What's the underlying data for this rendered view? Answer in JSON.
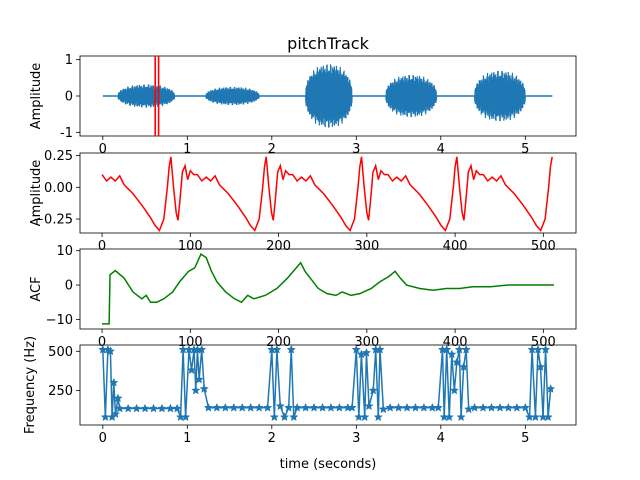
{
  "figure": {
    "title": "pitchTrack",
    "xlabel_bottom": "time (seconds)"
  },
  "chart_data": [
    {
      "type": "line",
      "id": "waveform",
      "ylabel": "Amplitude",
      "xlim": [
        -0.27,
        5.6
      ],
      "ylim": [
        -1.1,
        1.1
      ],
      "xticks": [
        0,
        1,
        2,
        3,
        4,
        5
      ],
      "yticks": [
        -1,
        0,
        1
      ],
      "color": "#1f77b4",
      "segments": [
        {
          "start": 0.18,
          "end": 0.85,
          "amp": 0.33
        },
        {
          "start": 1.22,
          "end": 1.85,
          "amp": 0.26
        },
        {
          "start": 2.4,
          "end": 2.95,
          "amp": 0.9
        },
        {
          "start": 3.35,
          "end": 3.95,
          "amp": 0.6
        },
        {
          "start": 4.4,
          "end": 5.0,
          "amp": 0.72
        }
      ],
      "markers": {
        "x": [
          0.62,
          0.66
        ],
        "color": "#ff0000"
      }
    },
    {
      "type": "line",
      "id": "frame",
      "ylabel": "Amplitude",
      "xlim": [
        -25,
        537
      ],
      "ylim": [
        -0.36,
        0.27
      ],
      "xticks": [
        0,
        100,
        200,
        300,
        400,
        500
      ],
      "yticks": [
        -0.25,
        0.0,
        0.25
      ],
      "ytick_labels": [
        "−0.25",
        "0.00",
        "0.25"
      ],
      "color": "#ff0000",
      "period": 108,
      "n_samples": 512,
      "cycle": [
        [
          0,
          0.1
        ],
        [
          5,
          0.05
        ],
        [
          10,
          0.08
        ],
        [
          15,
          0.05
        ],
        [
          20,
          0.09
        ],
        [
          25,
          0.02
        ],
        [
          35,
          -0.05
        ],
        [
          45,
          -0.14
        ],
        [
          55,
          -0.24
        ],
        [
          60,
          -0.3
        ],
        [
          65,
          -0.34
        ],
        [
          70,
          -0.25
        ],
        [
          74,
          0.0
        ],
        [
          76,
          0.16
        ],
        [
          78,
          0.24
        ],
        [
          81,
          0.0
        ],
        [
          84,
          -0.2
        ],
        [
          86,
          -0.26
        ],
        [
          88,
          -0.12
        ],
        [
          91,
          0.12
        ],
        [
          94,
          0.17
        ],
        [
          97,
          0.06
        ],
        [
          100,
          0.13
        ],
        [
          104,
          0.1
        ],
        [
          108,
          0.1
        ]
      ]
    },
    {
      "type": "line",
      "id": "acf",
      "ylabel": "ACF",
      "xlim": [
        -25,
        537
      ],
      "ylim": [
        -12.8,
        10.5
      ],
      "xticks": [
        0,
        100,
        200,
        300,
        400,
        500
      ],
      "yticks": [
        -10,
        0,
        10
      ],
      "ytick_labels": [
        "−10",
        "0",
        "10"
      ],
      "color": "#008000",
      "points": [
        [
          0,
          -11.3
        ],
        [
          8,
          -11.3
        ],
        [
          9,
          3
        ],
        [
          15,
          4.2
        ],
        [
          25,
          2
        ],
        [
          35,
          -2
        ],
        [
          45,
          -4
        ],
        [
          50,
          -3
        ],
        [
          55,
          -5
        ],
        [
          62,
          -5
        ],
        [
          70,
          -4
        ],
        [
          80,
          -2
        ],
        [
          88,
          1
        ],
        [
          98,
          4
        ],
        [
          105,
          5
        ],
        [
          112,
          9
        ],
        [
          118,
          8
        ],
        [
          124,
          4
        ],
        [
          130,
          1
        ],
        [
          140,
          -2
        ],
        [
          150,
          -4
        ],
        [
          158,
          -5
        ],
        [
          165,
          -3
        ],
        [
          172,
          -4
        ],
        [
          185,
          -3
        ],
        [
          198,
          -1
        ],
        [
          210,
          2
        ],
        [
          220,
          5
        ],
        [
          225,
          6.5
        ],
        [
          230,
          4
        ],
        [
          236,
          2
        ],
        [
          245,
          -1
        ],
        [
          255,
          -2.5
        ],
        [
          265,
          -3
        ],
        [
          272,
          -2
        ],
        [
          282,
          -3
        ],
        [
          292,
          -2.5
        ],
        [
          305,
          -1
        ],
        [
          315,
          1
        ],
        [
          325,
          2.5
        ],
        [
          332,
          4
        ],
        [
          338,
          2
        ],
        [
          345,
          0
        ],
        [
          360,
          -1
        ],
        [
          375,
          -1.5
        ],
        [
          390,
          -1
        ],
        [
          405,
          -1
        ],
        [
          420,
          -0.5
        ],
        [
          440,
          -0.5
        ],
        [
          460,
          0
        ],
        [
          480,
          0
        ],
        [
          500,
          0
        ],
        [
          512,
          0
        ]
      ]
    },
    {
      "type": "line",
      "id": "pitch",
      "ylabel": "Frequency (Hz)",
      "xlabel": "time (seconds)",
      "xlim": [
        -0.27,
        5.6
      ],
      "ylim": [
        30,
        540
      ],
      "xticks": [
        0,
        1,
        2,
        3,
        4,
        5
      ],
      "yticks": [
        250,
        500
      ],
      "color": "#1f77b4",
      "marker": "star",
      "points": [
        [
          0.0,
          510
        ],
        [
          0.03,
          80
        ],
        [
          0.06,
          510
        ],
        [
          0.09,
          500
        ],
        [
          0.11,
          80
        ],
        [
          0.13,
          300
        ],
        [
          0.15,
          100
        ],
        [
          0.18,
          200
        ],
        [
          0.2,
          135
        ],
        [
          0.3,
          135
        ],
        [
          0.4,
          135
        ],
        [
          0.5,
          135
        ],
        [
          0.6,
          135
        ],
        [
          0.7,
          135
        ],
        [
          0.8,
          135
        ],
        [
          0.88,
          135
        ],
        [
          0.92,
          80
        ],
        [
          0.95,
          510
        ],
        [
          0.98,
          80
        ],
        [
          1.02,
          510
        ],
        [
          1.05,
          380
        ],
        [
          1.08,
          510
        ],
        [
          1.1,
          250
        ],
        [
          1.12,
          510
        ],
        [
          1.14,
          320
        ],
        [
          1.17,
          510
        ],
        [
          1.2,
          260
        ],
        [
          1.25,
          140
        ],
        [
          1.35,
          140
        ],
        [
          1.45,
          140
        ],
        [
          1.55,
          140
        ],
        [
          1.65,
          140
        ],
        [
          1.75,
          140
        ],
        [
          1.85,
          140
        ],
        [
          1.95,
          140
        ],
        [
          2.0,
          510
        ],
        [
          2.03,
          80
        ],
        [
          2.06,
          510
        ],
        [
          2.1,
          150
        ],
        [
          2.15,
          80
        ],
        [
          2.2,
          140
        ],
        [
          2.23,
          510
        ],
        [
          2.26,
          80
        ],
        [
          2.3,
          140
        ],
        [
          2.4,
          140
        ],
        [
          2.5,
          140
        ],
        [
          2.6,
          140
        ],
        [
          2.7,
          140
        ],
        [
          2.8,
          140
        ],
        [
          2.9,
          140
        ],
        [
          2.95,
          140
        ],
        [
          3.0,
          510
        ],
        [
          3.03,
          80
        ],
        [
          3.06,
          480
        ],
        [
          3.1,
          80
        ],
        [
          3.12,
          490
        ],
        [
          3.15,
          150
        ],
        [
          3.2,
          250
        ],
        [
          3.23,
          510
        ],
        [
          3.26,
          80
        ],
        [
          3.28,
          510
        ],
        [
          3.32,
          130
        ],
        [
          3.4,
          140
        ],
        [
          3.5,
          140
        ],
        [
          3.6,
          140
        ],
        [
          3.7,
          140
        ],
        [
          3.8,
          140
        ],
        [
          3.9,
          140
        ],
        [
          3.97,
          140
        ],
        [
          4.02,
          510
        ],
        [
          4.04,
          80
        ],
        [
          4.07,
          510
        ],
        [
          4.1,
          80
        ],
        [
          4.13,
          480
        ],
        [
          4.16,
          250
        ],
        [
          4.19,
          430
        ],
        [
          4.22,
          510
        ],
        [
          4.24,
          80
        ],
        [
          4.27,
          400
        ],
        [
          4.3,
          510
        ],
        [
          4.33,
          130
        ],
        [
          4.4,
          140
        ],
        [
          4.5,
          140
        ],
        [
          4.6,
          140
        ],
        [
          4.7,
          140
        ],
        [
          4.8,
          140
        ],
        [
          4.9,
          140
        ],
        [
          5.0,
          140
        ],
        [
          5.05,
          80
        ],
        [
          5.08,
          510
        ],
        [
          5.12,
          80
        ],
        [
          5.15,
          510
        ],
        [
          5.18,
          400
        ],
        [
          5.21,
          80
        ],
        [
          5.24,
          510
        ],
        [
          5.27,
          80
        ],
        [
          5.3,
          260
        ]
      ]
    }
  ]
}
